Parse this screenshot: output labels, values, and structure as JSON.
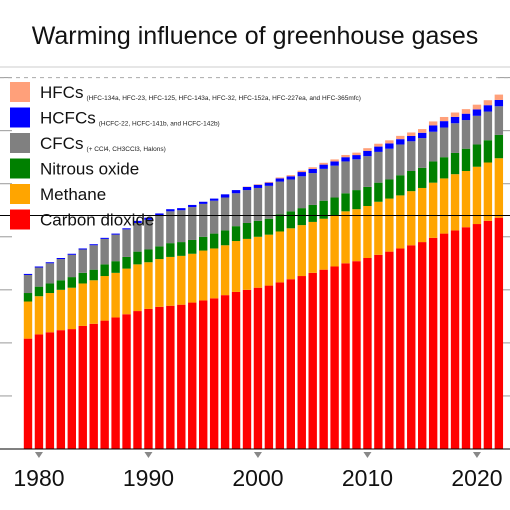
{
  "chart_data": {
    "type": "bar",
    "stacked": true,
    "title": "Warming influence of greenhouse gases",
    "xlabel": "",
    "ylabel": "",
    "x_ticks": [
      "1980",
      "1990",
      "2000",
      "2010",
      "2020"
    ],
    "tick_years": [
      1980,
      1990,
      2000,
      2010,
      2020
    ],
    "ylim": [
      0,
      3.6
    ],
    "reference_line": 2.2,
    "grid": "horizontal dashed",
    "legend_position": "top-left",
    "categories": [
      1979,
      1980,
      1981,
      1982,
      1983,
      1984,
      1985,
      1986,
      1987,
      1988,
      1989,
      1990,
      1991,
      1992,
      1993,
      1994,
      1995,
      1996,
      1997,
      1998,
      1999,
      2000,
      2001,
      2002,
      2003,
      2004,
      2005,
      2006,
      2007,
      2008,
      2009,
      2010,
      2011,
      2012,
      2013,
      2014,
      2015,
      2016,
      2017,
      2018,
      2019,
      2020,
      2021,
      2022
    ],
    "series": [
      {
        "name": "Carbon dioxide",
        "color": "#ff0000",
        "values": [
          1.04,
          1.08,
          1.1,
          1.12,
          1.13,
          1.16,
          1.18,
          1.21,
          1.24,
          1.27,
          1.3,
          1.32,
          1.34,
          1.35,
          1.36,
          1.38,
          1.4,
          1.42,
          1.45,
          1.48,
          1.5,
          1.52,
          1.54,
          1.57,
          1.6,
          1.63,
          1.66,
          1.69,
          1.72,
          1.75,
          1.77,
          1.8,
          1.83,
          1.86,
          1.89,
          1.92,
          1.95,
          1.99,
          2.03,
          2.06,
          2.09,
          2.12,
          2.15,
          2.18
        ]
      },
      {
        "name": "Methane",
        "color": "#ffa500",
        "values": [
          0.35,
          0.36,
          0.37,
          0.38,
          0.39,
          0.4,
          0.41,
          0.42,
          0.42,
          0.43,
          0.44,
          0.44,
          0.45,
          0.46,
          0.46,
          0.46,
          0.47,
          0.47,
          0.47,
          0.48,
          0.48,
          0.48,
          0.48,
          0.48,
          0.48,
          0.48,
          0.48,
          0.48,
          0.48,
          0.49,
          0.49,
          0.49,
          0.5,
          0.5,
          0.5,
          0.51,
          0.51,
          0.52,
          0.52,
          0.53,
          0.53,
          0.54,
          0.55,
          0.56
        ]
      },
      {
        "name": "Nitrous oxide",
        "color": "#008000",
        "values": [
          0.08,
          0.09,
          0.09,
          0.09,
          0.1,
          0.1,
          0.1,
          0.11,
          0.11,
          0.11,
          0.12,
          0.12,
          0.12,
          0.13,
          0.13,
          0.13,
          0.13,
          0.14,
          0.14,
          0.14,
          0.15,
          0.15,
          0.15,
          0.16,
          0.16,
          0.16,
          0.16,
          0.17,
          0.17,
          0.17,
          0.18,
          0.18,
          0.18,
          0.18,
          0.19,
          0.19,
          0.19,
          0.2,
          0.2,
          0.2,
          0.21,
          0.21,
          0.21,
          0.22
        ]
      },
      {
        "name": "CFCs",
        "color": "#808080",
        "values": [
          0.17,
          0.18,
          0.19,
          0.2,
          0.21,
          0.22,
          0.23,
          0.24,
          0.25,
          0.26,
          0.27,
          0.28,
          0.29,
          0.3,
          0.3,
          0.31,
          0.31,
          0.31,
          0.31,
          0.31,
          0.31,
          0.31,
          0.31,
          0.31,
          0.3,
          0.3,
          0.3,
          0.3,
          0.3,
          0.3,
          0.29,
          0.29,
          0.29,
          0.29,
          0.29,
          0.28,
          0.28,
          0.28,
          0.28,
          0.28,
          0.27,
          0.27,
          0.27,
          0.27
        ]
      },
      {
        "name": "HCFCs",
        "color": "#0000ff",
        "values": [
          0.01,
          0.01,
          0.01,
          0.01,
          0.01,
          0.01,
          0.01,
          0.01,
          0.01,
          0.01,
          0.02,
          0.02,
          0.02,
          0.02,
          0.02,
          0.02,
          0.02,
          0.02,
          0.03,
          0.03,
          0.03,
          0.03,
          0.03,
          0.03,
          0.03,
          0.04,
          0.04,
          0.04,
          0.04,
          0.04,
          0.04,
          0.05,
          0.05,
          0.05,
          0.05,
          0.05,
          0.05,
          0.06,
          0.06,
          0.06,
          0.06,
          0.06,
          0.06,
          0.06
        ]
      },
      {
        "name": "HFCs",
        "color": "#ffa07a",
        "values": [
          0,
          0,
          0,
          0,
          0,
          0,
          0,
          0,
          0,
          0,
          0,
          0,
          0,
          0,
          0,
          0,
          0,
          0,
          0,
          0,
          0.003,
          0.005,
          0.007,
          0.009,
          0.011,
          0.013,
          0.015,
          0.017,
          0.019,
          0.021,
          0.023,
          0.025,
          0.027,
          0.029,
          0.031,
          0.033,
          0.035,
          0.037,
          0.039,
          0.041,
          0.043,
          0.045,
          0.047,
          0.05
        ]
      }
    ],
    "legend": [
      {
        "name": "HFCs",
        "color": "#ffa07a",
        "note": "(HFC-134a, HFC-23, HFC-125, HFC-143a, HFC-32, HFC-152a, HFC-227ea, and HFC-365mfc)"
      },
      {
        "name": "HCFCs",
        "color": "#0000ff",
        "note": "(HCFC-22, HCFC-141b, and HCFC-142b)"
      },
      {
        "name": "CFCs",
        "color": "#808080",
        "note": "(+ CCl4, CH3CCl3, Halons)"
      },
      {
        "name": "Nitrous oxide",
        "color": "#008000",
        "note": ""
      },
      {
        "name": "Methane",
        "color": "#ffa500",
        "note": ""
      },
      {
        "name": "Carbon dioxide",
        "color": "#ff0000",
        "note": ""
      }
    ]
  }
}
